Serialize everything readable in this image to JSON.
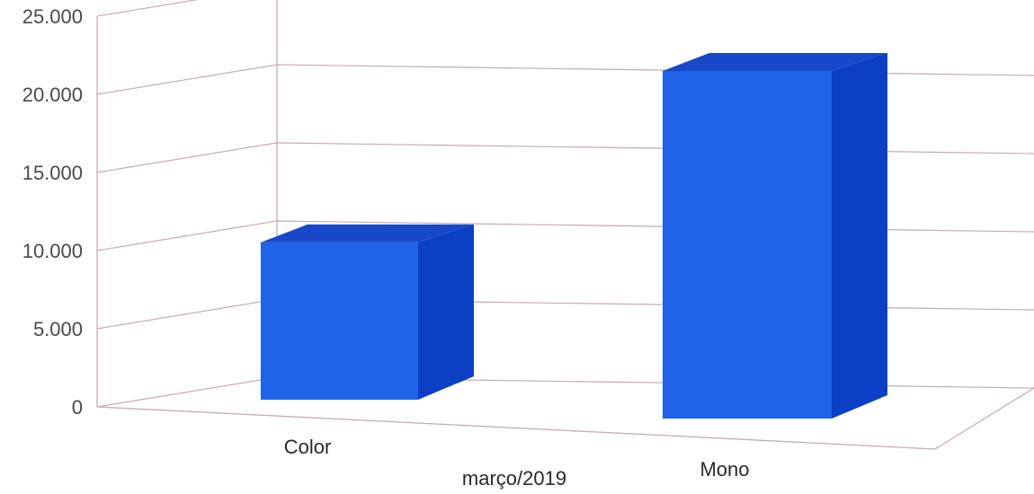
{
  "chart_data": {
    "type": "bar",
    "categories": [
      "Color",
      "Mono"
    ],
    "values": [
      9500,
      21000
    ],
    "xlabel": "março/2019",
    "ylabel": "",
    "ylim": [
      0,
      25000
    ],
    "yticks": [
      0,
      5000,
      10000,
      15000,
      20000,
      25000
    ],
    "ytick_labels": [
      "0",
      "5.000",
      "10.000",
      "15.000",
      "20.000",
      "25.000"
    ],
    "grid": true,
    "legend": "none",
    "bar_color": "#1f5fe0"
  }
}
